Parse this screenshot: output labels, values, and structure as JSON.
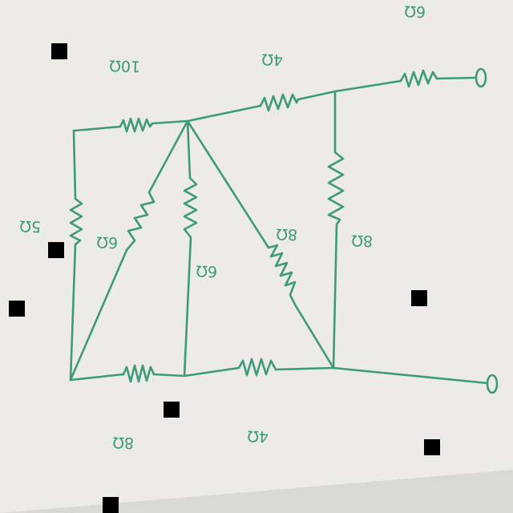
{
  "colors": {
    "ink": "#3e9a7c",
    "paper": "#ecebe7",
    "background": "#d8d8d4",
    "marker": "#000000"
  },
  "labels": {
    "top_left_resistor": "10Ω",
    "top_middle_resistor": "4Ω",
    "top_right_resistor": "6Ω",
    "left_vertical_resistor": "5Ω",
    "diagonal_left_resistor": "6Ω",
    "center_vertical_resistor": "6Ω",
    "diagonal_right_resistor": "8Ω",
    "right_vertical_resistor": "8Ω",
    "bottom_left_resistor": "8Ω",
    "bottom_middle_resistor": "4Ω"
  }
}
